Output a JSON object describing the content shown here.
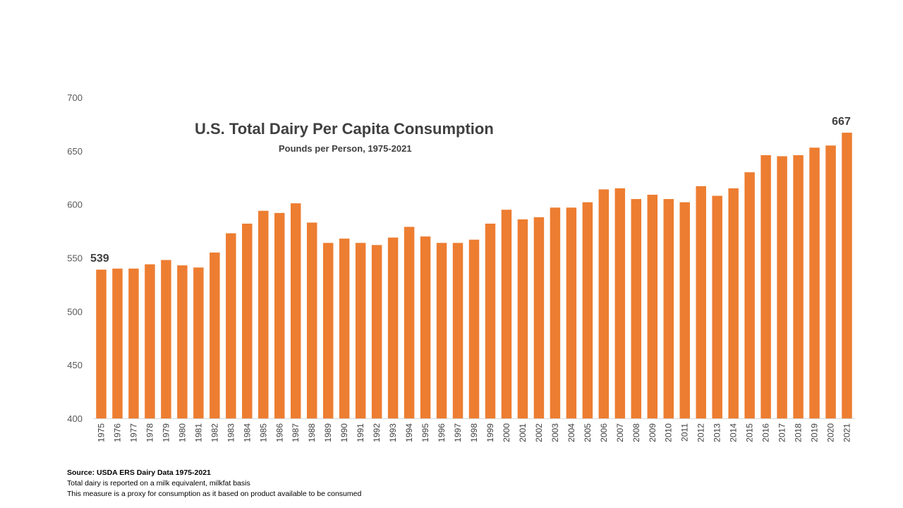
{
  "chart_data": {
    "type": "bar",
    "title": "U.S. Total Dairy Per Capita Consumption",
    "subtitle": "Pounds per Person, 1975-2021",
    "xlabel": "",
    "ylabel": "",
    "ylim": [
      400,
      700
    ],
    "yticks": [
      400,
      450,
      500,
      550,
      600,
      650,
      700
    ],
    "grid": false,
    "legend": "none",
    "bar_color": "#ED7D31",
    "categories": [
      "1975",
      "1976",
      "1977",
      "1978",
      "1979",
      "1980",
      "1981",
      "1982",
      "1983",
      "1984",
      "1985",
      "1986",
      "1987",
      "1988",
      "1989",
      "1990",
      "1991",
      "1992",
      "1993",
      "1994",
      "1995",
      "1996",
      "1997",
      "1998",
      "1999",
      "2000",
      "2001",
      "2002",
      "2003",
      "2004",
      "2005",
      "2006",
      "2007",
      "2008",
      "2009",
      "2010",
      "2011",
      "2012",
      "2013",
      "2014",
      "2015",
      "2016",
      "2017",
      "2018",
      "2019",
      "2020",
      "2021"
    ],
    "values": [
      539,
      540,
      540,
      544,
      548,
      543,
      541,
      555,
      573,
      582,
      594,
      592,
      601,
      583,
      564,
      568,
      564,
      562,
      569,
      579,
      570,
      564,
      564,
      567,
      582,
      595,
      586,
      588,
      597,
      597,
      602,
      614,
      615,
      605,
      609,
      605,
      602,
      617,
      608,
      615,
      630,
      646,
      645,
      646,
      653,
      655,
      667
    ],
    "annotations": [
      {
        "category": "1975",
        "text": "539"
      },
      {
        "category": "2021",
        "text": "667"
      }
    ]
  },
  "notes": {
    "source": "Source: USDA ERS  Dairy Data 1975-2021",
    "line1": "Total dairy is reported on a milk equivalent, milkfat basis",
    "line2": "This measure is a proxy for consumption as it based on product available to be consumed"
  }
}
